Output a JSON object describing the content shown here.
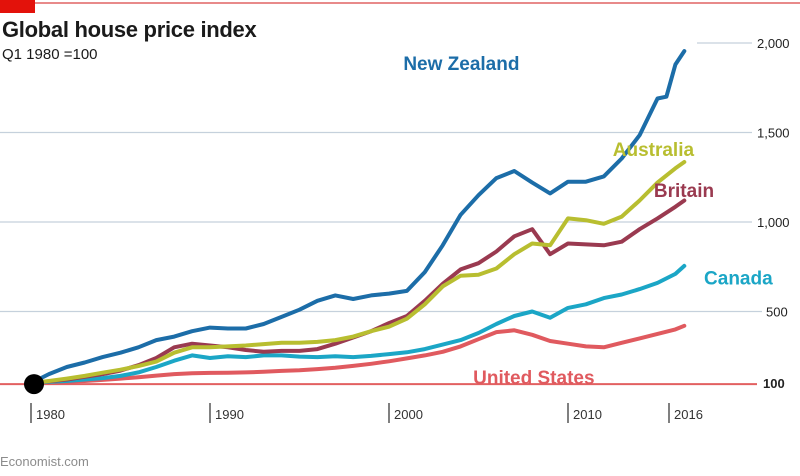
{
  "header": {
    "title": "Global house price index",
    "subtitle": "Q1 1980 =100"
  },
  "footer": {
    "source": "Economist.com"
  },
  "colors": {
    "accent_red": "#e3120b",
    "grid": "#c5d1dc",
    "baseline": "#e26061"
  },
  "chart_data": {
    "type": "line",
    "title": "Global house price index",
    "subtitle": "Q1 1980 =100",
    "xlabel": "",
    "ylabel": "",
    "xlim": [
      1980,
      2018.5
    ],
    "ylim": [
      0,
      2050
    ],
    "x_ticks": [
      {
        "value": 1980,
        "label": "1980"
      },
      {
        "value": 1990,
        "label": "1990"
      },
      {
        "value": 2000,
        "label": "2000"
      },
      {
        "value": 2010,
        "label": "2010"
      },
      {
        "value": 2016,
        "label": "2016"
      }
    ],
    "y_ticks": [
      {
        "value": 100,
        "label": "100",
        "bold": true
      },
      {
        "value": 500,
        "label": "500",
        "bold": false
      },
      {
        "value": 1000,
        "label": "1,000",
        "bold": false
      },
      {
        "value": 1500,
        "label": "1,500",
        "bold": false
      },
      {
        "value": 2000,
        "label": "2,000",
        "bold": false
      }
    ],
    "y_axis_side": "right",
    "grid": true,
    "legend": "inline labels",
    "origin_marker": {
      "x": 1980,
      "y": 100
    },
    "series": [
      {
        "name": "United States",
        "color": "#e05a5f",
        "label_pos": {
          "x": 2004.7,
          "y": 95
        },
        "points": [
          [
            1980,
            100
          ],
          [
            1981,
            103
          ],
          [
            1982,
            107
          ],
          [
            1983,
            112
          ],
          [
            1984,
            118
          ],
          [
            1985,
            125
          ],
          [
            1986,
            133
          ],
          [
            1987,
            142
          ],
          [
            1988,
            150
          ],
          [
            1989,
            155
          ],
          [
            1990,
            157
          ],
          [
            1991,
            158
          ],
          [
            1992,
            160
          ],
          [
            1993,
            163
          ],
          [
            1994,
            168
          ],
          [
            1995,
            172
          ],
          [
            1996,
            178
          ],
          [
            1997,
            186
          ],
          [
            1998,
            196
          ],
          [
            1999,
            208
          ],
          [
            2000,
            222
          ],
          [
            2001,
            238
          ],
          [
            2002,
            255
          ],
          [
            2003,
            275
          ],
          [
            2004,
            305
          ],
          [
            2005,
            345
          ],
          [
            2006,
            385
          ],
          [
            2007,
            395
          ],
          [
            2008,
            370
          ],
          [
            2009,
            335
          ],
          [
            2010,
            320
          ],
          [
            2011,
            305
          ],
          [
            2012,
            300
          ],
          [
            2013,
            325
          ],
          [
            2014,
            350
          ],
          [
            2015,
            375
          ],
          [
            2016,
            400
          ],
          [
            2016.5,
            420
          ]
        ]
      },
      {
        "name": "Canada",
        "color": "#1ba6c6",
        "label_pos": {
          "x": 2017.6,
          "y": 650
        },
        "points": [
          [
            1980,
            100
          ],
          [
            1981,
            108
          ],
          [
            1982,
            112
          ],
          [
            1983,
            120
          ],
          [
            1984,
            128
          ],
          [
            1985,
            140
          ],
          [
            1986,
            160
          ],
          [
            1987,
            190
          ],
          [
            1988,
            225
          ],
          [
            1989,
            255
          ],
          [
            1990,
            240
          ],
          [
            1991,
            250
          ],
          [
            1992,
            245
          ],
          [
            1993,
            255
          ],
          [
            1994,
            255
          ],
          [
            1995,
            248
          ],
          [
            1996,
            245
          ],
          [
            1997,
            250
          ],
          [
            1998,
            245
          ],
          [
            1999,
            252
          ],
          [
            2000,
            262
          ],
          [
            2001,
            272
          ],
          [
            2002,
            290
          ],
          [
            2003,
            315
          ],
          [
            2004,
            340
          ],
          [
            2005,
            380
          ],
          [
            2006,
            430
          ],
          [
            2007,
            475
          ],
          [
            2008,
            500
          ],
          [
            2009,
            465
          ],
          [
            2010,
            520
          ],
          [
            2011,
            540
          ],
          [
            2012,
            575
          ],
          [
            2013,
            595
          ],
          [
            2014,
            625
          ],
          [
            2015,
            660
          ],
          [
            2016,
            710
          ],
          [
            2016.5,
            755
          ]
        ]
      },
      {
        "name": "Britain",
        "color": "#9a3a50",
        "label_pos": {
          "x": 2014.8,
          "y": 1140
        },
        "points": [
          [
            1980,
            100
          ],
          [
            1981,
            110
          ],
          [
            1982,
            120
          ],
          [
            1983,
            135
          ],
          [
            1984,
            150
          ],
          [
            1985,
            170
          ],
          [
            1986,
            200
          ],
          [
            1987,
            240
          ],
          [
            1988,
            300
          ],
          [
            1989,
            320
          ],
          [
            1990,
            310
          ],
          [
            1991,
            300
          ],
          [
            1992,
            285
          ],
          [
            1993,
            275
          ],
          [
            1994,
            280
          ],
          [
            1995,
            280
          ],
          [
            1996,
            290
          ],
          [
            1997,
            320
          ],
          [
            1998,
            355
          ],
          [
            1999,
            390
          ],
          [
            2000,
            435
          ],
          [
            2001,
            475
          ],
          [
            2002,
            560
          ],
          [
            2003,
            655
          ],
          [
            2004,
            735
          ],
          [
            2005,
            770
          ],
          [
            2006,
            835
          ],
          [
            2007,
            920
          ],
          [
            2008,
            960
          ],
          [
            2009,
            820
          ],
          [
            2010,
            880
          ],
          [
            2011,
            875
          ],
          [
            2012,
            870
          ],
          [
            2013,
            890
          ],
          [
            2014,
            960
          ],
          [
            2015,
            1020
          ],
          [
            2016,
            1085
          ],
          [
            2016.5,
            1120
          ]
        ]
      },
      {
        "name": "Australia",
        "color": "#b8be30",
        "label_pos": {
          "x": 2012.5,
          "y": 1370
        },
        "points": [
          [
            1980,
            100
          ],
          [
            1981,
            112
          ],
          [
            1982,
            125
          ],
          [
            1983,
            140
          ],
          [
            1984,
            158
          ],
          [
            1985,
            175
          ],
          [
            1986,
            195
          ],
          [
            1987,
            220
          ],
          [
            1988,
            270
          ],
          [
            1989,
            300
          ],
          [
            1990,
            300
          ],
          [
            1991,
            305
          ],
          [
            1992,
            310
          ],
          [
            1993,
            318
          ],
          [
            1994,
            325
          ],
          [
            1995,
            325
          ],
          [
            1996,
            330
          ],
          [
            1997,
            340
          ],
          [
            1998,
            360
          ],
          [
            1999,
            390
          ],
          [
            2000,
            415
          ],
          [
            2001,
            460
          ],
          [
            2002,
            540
          ],
          [
            2003,
            640
          ],
          [
            2004,
            700
          ],
          [
            2005,
            705
          ],
          [
            2006,
            740
          ],
          [
            2007,
            820
          ],
          [
            2008,
            880
          ],
          [
            2009,
            870
          ],
          [
            2010,
            1020
          ],
          [
            2011,
            1010
          ],
          [
            2012,
            990
          ],
          [
            2013,
            1030
          ],
          [
            2014,
            1120
          ],
          [
            2015,
            1220
          ],
          [
            2016,
            1300
          ],
          [
            2016.5,
            1335
          ]
        ]
      },
      {
        "name": "New Zealand",
        "color": "#1c6da8",
        "label_pos": {
          "x": 2000.8,
          "y": 1850
        },
        "points": [
          [
            1980,
            100
          ],
          [
            1981,
            150
          ],
          [
            1982,
            190
          ],
          [
            1983,
            215
          ],
          [
            1984,
            245
          ],
          [
            1985,
            270
          ],
          [
            1986,
            300
          ],
          [
            1987,
            340
          ],
          [
            1988,
            360
          ],
          [
            1989,
            390
          ],
          [
            1990,
            410
          ],
          [
            1991,
            405
          ],
          [
            1992,
            405
          ],
          [
            1993,
            430
          ],
          [
            1994,
            470
          ],
          [
            1995,
            510
          ],
          [
            1996,
            560
          ],
          [
            1997,
            590
          ],
          [
            1998,
            570
          ],
          [
            1999,
            590
          ],
          [
            2000,
            600
          ],
          [
            2001,
            615
          ],
          [
            2002,
            720
          ],
          [
            2003,
            870
          ],
          [
            2004,
            1040
          ],
          [
            2005,
            1150
          ],
          [
            2006,
            1245
          ],
          [
            2007,
            1285
          ],
          [
            2008,
            1220
          ],
          [
            2009,
            1160
          ],
          [
            2010,
            1225
          ],
          [
            2011,
            1225
          ],
          [
            2012,
            1255
          ],
          [
            2013,
            1355
          ],
          [
            2014,
            1485
          ],
          [
            2015,
            1690
          ],
          [
            2015.5,
            1700
          ],
          [
            2016,
            1880
          ],
          [
            2016.5,
            1955
          ]
        ]
      }
    ]
  }
}
